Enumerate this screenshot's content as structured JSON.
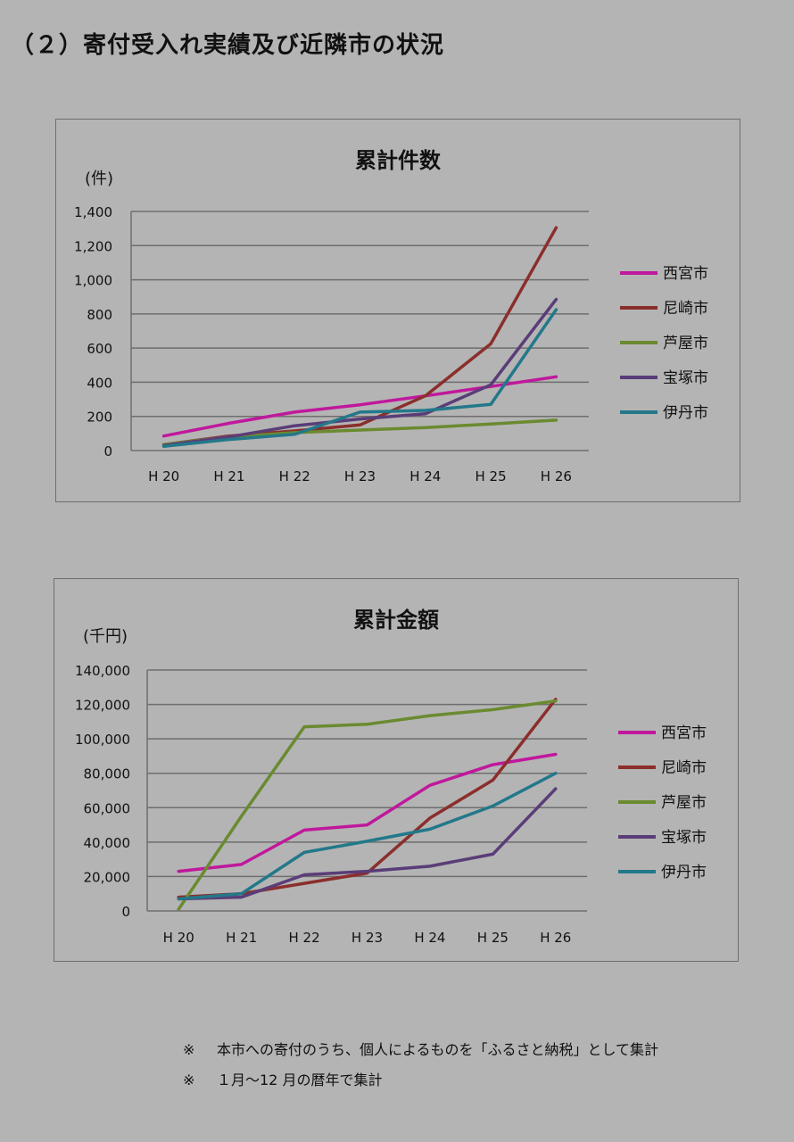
{
  "page": {
    "title": "（２）寄付受入れ実績及び近隣市の状況"
  },
  "colors": {
    "background": "#b4b4b4",
    "gridline": "#6e6e6e",
    "西宮市": "#c0189c",
    "尼崎市": "#8b2e2c",
    "芦屋市": "#6a8a30",
    "宝塚市": "#5a3d78",
    "伊丹市": "#23788a"
  },
  "chart_data": [
    {
      "type": "line",
      "title": "累計件数",
      "ylabel": "(件)",
      "xlabel": "",
      "categories": [
        "H 20",
        "H 21",
        "H 22",
        "H 23",
        "H 24",
        "H 25",
        "H 26"
      ],
      "ylim": [
        0,
        1400
      ],
      "yticks": [
        0,
        200,
        400,
        600,
        800,
        1000,
        1200,
        1400
      ],
      "ytick_labels": [
        "0",
        "200",
        "400",
        "600",
        "800",
        "1,000",
        "1,200",
        "1,400"
      ],
      "grid": true,
      "legend": "right",
      "series": [
        {
          "name": "西宮市",
          "values": [
            85,
            160,
            225,
            268,
            320,
            375,
            432
          ]
        },
        {
          "name": "尼崎市",
          "values": [
            35,
            85,
            115,
            150,
            320,
            625,
            1305
          ]
        },
        {
          "name": "芦屋市",
          "values": [
            35,
            80,
            105,
            120,
            135,
            155,
            178
          ]
        },
        {
          "name": "宝塚市",
          "values": [
            30,
            80,
            145,
            185,
            215,
            385,
            885
          ]
        },
        {
          "name": "伊丹市",
          "values": [
            25,
            65,
            95,
            225,
            235,
            270,
            825
          ]
        }
      ]
    },
    {
      "type": "line",
      "title": "累計金額",
      "ylabel": "(千円)",
      "xlabel": "",
      "categories": [
        "H 20",
        "H 21",
        "H 22",
        "H 23",
        "H 24",
        "H 25",
        "H 26"
      ],
      "ylim": [
        0,
        140000
      ],
      "yticks": [
        0,
        20000,
        40000,
        60000,
        80000,
        100000,
        120000,
        140000
      ],
      "ytick_labels": [
        "0",
        "20,000",
        "40,000",
        "60,000",
        "80,000",
        "100,000",
        "120,000",
        "140,000"
      ],
      "grid": true,
      "legend": "right",
      "series": [
        {
          "name": "西宮市",
          "values": [
            23000,
            27000,
            47000,
            50000,
            73000,
            85000,
            91000
          ]
        },
        {
          "name": "尼崎市",
          "values": [
            8000,
            10000,
            16000,
            22000,
            54000,
            76000,
            123000
          ]
        },
        {
          "name": "芦屋市",
          "values": [
            1000,
            55000,
            107000,
            108500,
            113500,
            117000,
            122000
          ]
        },
        {
          "name": "宝塚市",
          "values": [
            7000,
            8000,
            21000,
            23000,
            26000,
            33000,
            71000
          ]
        },
        {
          "name": "伊丹市",
          "values": [
            7000,
            10000,
            34000,
            40500,
            47500,
            61000,
            80000
          ]
        }
      ]
    }
  ],
  "footnotes": [
    {
      "mark": "※",
      "text": "本市への寄付のうち、個人によるものを「ふるさと納税」として集計"
    },
    {
      "mark": "※",
      "text": "１月～12 月の暦年で集計"
    }
  ]
}
